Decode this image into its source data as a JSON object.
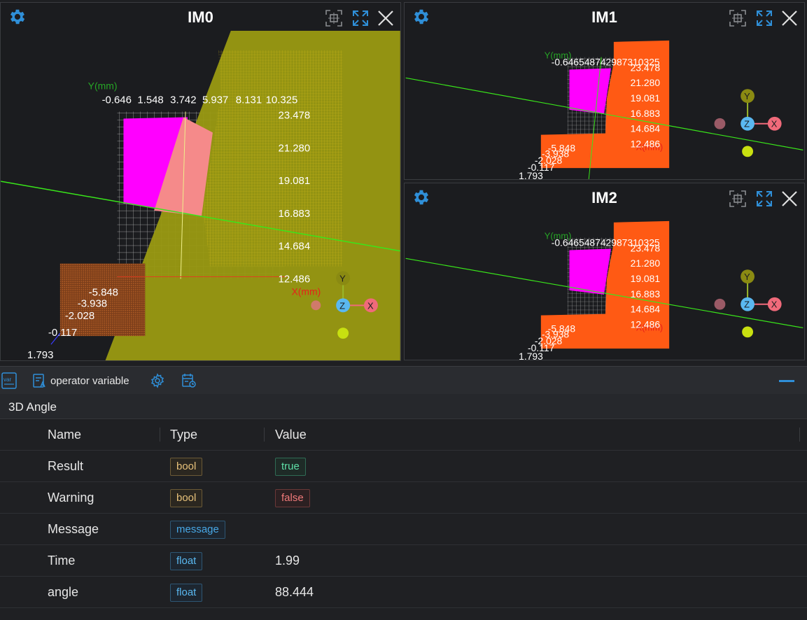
{
  "viewers": [
    {
      "title": "IM0",
      "y_axis_label": "Y(mm)",
      "x_axis_label": "X(mm)",
      "top_ticks": [
        "-0.646",
        "1.548",
        "3.742",
        "5.937",
        "8.131",
        "10.325"
      ],
      "right_ticks": [
        "23.478",
        "21.280",
        "19.081",
        "16.883",
        "14.684",
        "12.486"
      ],
      "left_ticks": [
        "-5.848",
        "-3.938",
        "-2.028",
        "-0.117",
        "1.793"
      ],
      "gizmo": {
        "y": "Y",
        "z": "Z",
        "x": "X"
      }
    },
    {
      "title": "IM1",
      "y_axis_label": "Y(mm)",
      "x_axis_label": "X(mm)",
      "top_ticks_overlap": "-0.646548742987310325",
      "right_ticks": [
        "23.478",
        "21.280",
        "19.081",
        "16.883",
        "14.684",
        "12.486"
      ],
      "left_ticks": [
        "-5.848",
        "-3.938",
        "-2.028",
        "-0.117",
        "1.793"
      ],
      "gizmo": {
        "y": "Y",
        "z": "Z",
        "x": "X"
      }
    },
    {
      "title": "IM2",
      "y_axis_label": "Y(mm)",
      "x_axis_label": "X(mm)",
      "top_ticks_overlap": "-0.646548742987310325",
      "right_ticks": [
        "23.478",
        "21.280",
        "19.081",
        "16.883",
        "14.684",
        "12.486"
      ],
      "left_ticks": [
        "-5.848",
        "-3.938",
        "-2.028",
        "-0.117",
        "1.793"
      ],
      "gizmo": {
        "y": "Y",
        "z": "Z",
        "x": "X"
      }
    }
  ],
  "toolbar": {
    "var_icon_text": "var",
    "operator_variable_label": "operator variable"
  },
  "section": {
    "title": "3D Angle"
  },
  "table": {
    "headers": {
      "name": "Name",
      "type": "Type",
      "value": "Value"
    },
    "rows": [
      {
        "name": "Result",
        "type": "bool",
        "value": "true",
        "value_kind": "true"
      },
      {
        "name": "Warning",
        "type": "bool",
        "value": "false",
        "value_kind": "false"
      },
      {
        "name": "Message",
        "type": "message",
        "value": "",
        "value_kind": "empty"
      },
      {
        "name": "Time",
        "type": "float",
        "value": "1.99",
        "value_kind": "plain"
      },
      {
        "name": "angle",
        "type": "float",
        "value": "88.444",
        "value_kind": "plain"
      }
    ]
  },
  "colors": {
    "accent": "#2f8fd8",
    "magenta": "#ff00ff",
    "olive": "#9a9a12",
    "orange": "#ff5a14",
    "green_line": "#39e61a"
  }
}
